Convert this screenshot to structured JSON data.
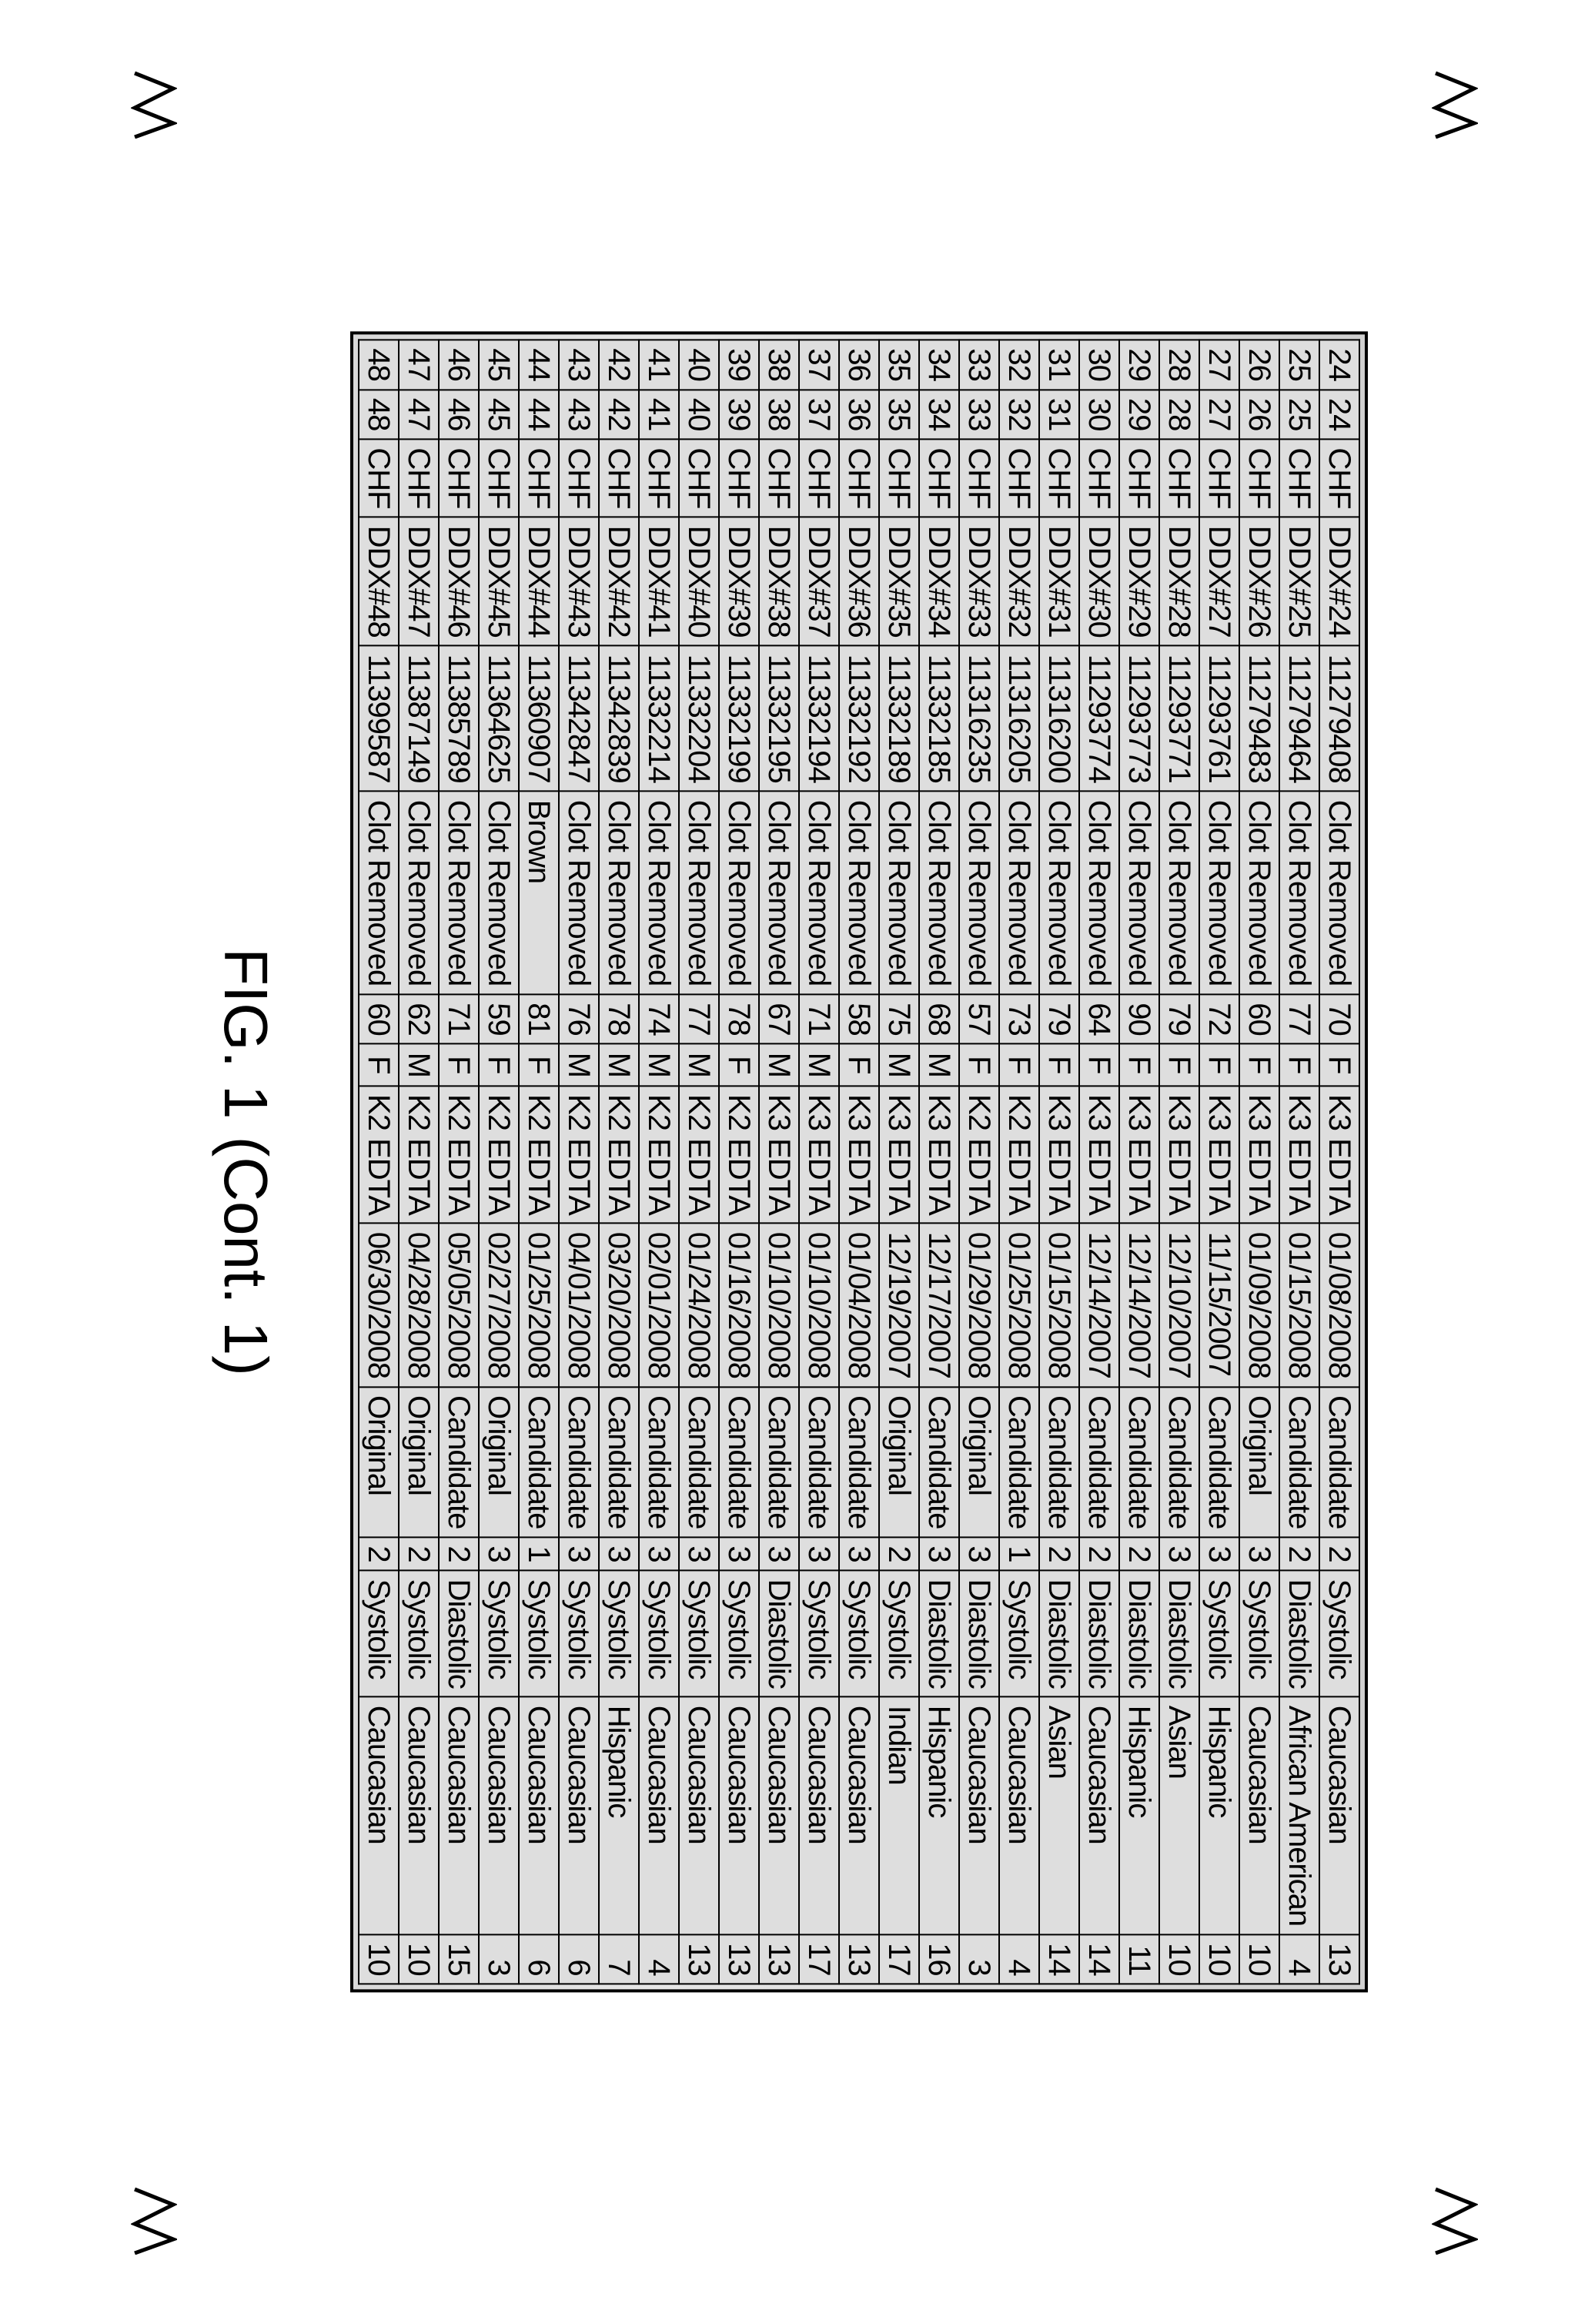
{
  "caption": "FIG. 1 (Cont. 1)",
  "colors": {
    "border": "#000000",
    "tableBg": "#dedede",
    "pageBg": "#ffffff",
    "text": "#000000"
  },
  "rows": [
    {
      "c0": "24",
      "c1": "24",
      "c2": "CHF",
      "c3": "DDX#24",
      "c4": "11279408",
      "c5": "Clot Removed",
      "c6": "70",
      "c7": "F",
      "c8": "K3 EDTA",
      "c9": "01/08/2008",
      "c10": "Candidate",
      "c11": "2",
      "c12": "Systolic",
      "c13": "Caucasian",
      "c14": "13"
    },
    {
      "c0": "25",
      "c1": "25",
      "c2": "CHF",
      "c3": "DDX#25",
      "c4": "11279464",
      "c5": "Clot Removed",
      "c6": "77",
      "c7": "F",
      "c8": "K3 EDTA",
      "c9": "01/15/2008",
      "c10": "Candidate",
      "c11": "2",
      "c12": "Diastolic",
      "c13": "African American",
      "c14": "4"
    },
    {
      "c0": "26",
      "c1": "26",
      "c2": "CHF",
      "c3": "DDX#26",
      "c4": "11279483",
      "c5": "Clot Removed",
      "c6": "60",
      "c7": "F",
      "c8": "K3 EDTA",
      "c9": "01/09/2008",
      "c10": "Original",
      "c11": "3",
      "c12": "Systolic",
      "c13": "Caucasian",
      "c14": "10"
    },
    {
      "c0": "27",
      "c1": "27",
      "c2": "CHF",
      "c3": "DDX#27",
      "c4": "11293761",
      "c5": "Clot Removed",
      "c6": "72",
      "c7": "F",
      "c8": "K3 EDTA",
      "c9": "11/15/2007",
      "c10": "Candidate",
      "c11": "3",
      "c12": "Systolic",
      "c13": "Hispanic",
      "c14": "10"
    },
    {
      "c0": "28",
      "c1": "28",
      "c2": "CHF",
      "c3": "DDX#28",
      "c4": "11293771",
      "c5": "Clot Removed",
      "c6": "79",
      "c7": "F",
      "c8": "K3 EDTA",
      "c9": "12/10/2007",
      "c10": "Candidate",
      "c11": "3",
      "c12": "Diastolic",
      "c13": "Asian",
      "c14": "10"
    },
    {
      "c0": "29",
      "c1": "29",
      "c2": "CHF",
      "c3": "DDX#29",
      "c4": "11293773",
      "c5": "Clot Removed",
      "c6": "90",
      "c7": "F",
      "c8": "K3 EDTA",
      "c9": "12/14/2007",
      "c10": "Candidate",
      "c11": "2",
      "c12": "Diastolic",
      "c13": "Hispanic",
      "c14": "11"
    },
    {
      "c0": "30",
      "c1": "30",
      "c2": "CHF",
      "c3": "DDX#30",
      "c4": "11293774",
      "c5": "Clot Removed",
      "c6": "64",
      "c7": "F",
      "c8": "K3 EDTA",
      "c9": "12/14/2007",
      "c10": "Candidate",
      "c11": "2",
      "c12": "Diastolic",
      "c13": "Caucasian",
      "c14": "14"
    },
    {
      "c0": "31",
      "c1": "31",
      "c2": "CHF",
      "c3": "DDX#31",
      "c4": "11316200",
      "c5": "Clot Removed",
      "c6": "79",
      "c7": "F",
      "c8": "K3 EDTA",
      "c9": "01/15/2008",
      "c10": "Candidate",
      "c11": "2",
      "c12": "Diastolic",
      "c13": "Asian",
      "c14": "14"
    },
    {
      "c0": "32",
      "c1": "32",
      "c2": "CHF",
      "c3": "DDX#32",
      "c4": "11316205",
      "c5": "Clot Removed",
      "c6": "73",
      "c7": "F",
      "c8": "K2 EDTA",
      "c9": "01/25/2008",
      "c10": "Candidate",
      "c11": "1",
      "c12": "Systolic",
      "c13": "Caucasian",
      "c14": "4"
    },
    {
      "c0": "33",
      "c1": "33",
      "c2": "CHF",
      "c3": "DDX#33",
      "c4": "11316235",
      "c5": "Clot Removed",
      "c6": "57",
      "c7": "F",
      "c8": "K2 EDTA",
      "c9": "01/29/2008",
      "c10": "Original",
      "c11": "3",
      "c12": "Diastolic",
      "c13": "Caucasian",
      "c14": "3"
    },
    {
      "c0": "34",
      "c1": "34",
      "c2": "CHF",
      "c3": "DDX#34",
      "c4": "11332185",
      "c5": "Clot Removed",
      "c6": "68",
      "c7": "M",
      "c8": "K3 EDTA",
      "c9": "12/17/2007",
      "c10": "Candidate",
      "c11": "3",
      "c12": "Diastolic",
      "c13": "Hispanic",
      "c14": "16"
    },
    {
      "c0": "35",
      "c1": "35",
      "c2": "CHF",
      "c3": "DDX#35",
      "c4": "11332189",
      "c5": "Clot Removed",
      "c6": "75",
      "c7": "M",
      "c8": "K3 EDTA",
      "c9": "12/19/2007",
      "c10": "Original",
      "c11": "2",
      "c12": "Systolic",
      "c13": "Indian",
      "c14": "17"
    },
    {
      "c0": "36",
      "c1": "36",
      "c2": "CHF",
      "c3": "DDX#36",
      "c4": "11332192",
      "c5": "Clot Removed",
      "c6": "58",
      "c7": "F",
      "c8": "K3 EDTA",
      "c9": "01/04/2008",
      "c10": "Candidate",
      "c11": "3",
      "c12": "Systolic",
      "c13": "Caucasian",
      "c14": "13"
    },
    {
      "c0": "37",
      "c1": "37",
      "c2": "CHF",
      "c3": "DDX#37",
      "c4": "11332194",
      "c5": "Clot Removed",
      "c6": "71",
      "c7": "M",
      "c8": "K3 EDTA",
      "c9": "01/10/2008",
      "c10": "Candidate",
      "c11": "3",
      "c12": "Systolic",
      "c13": "Caucasian",
      "c14": "17"
    },
    {
      "c0": "38",
      "c1": "38",
      "c2": "CHF",
      "c3": "DDX#38",
      "c4": "11332195",
      "c5": "Clot Removed",
      "c6": "67",
      "c7": "M",
      "c8": "K3 EDTA",
      "c9": "01/10/2008",
      "c10": "Candidate",
      "c11": "3",
      "c12": "Diastolic",
      "c13": "Caucasian",
      "c14": "13"
    },
    {
      "c0": "39",
      "c1": "39",
      "c2": "CHF",
      "c3": "DDX#39",
      "c4": "11332199",
      "c5": "Clot Removed",
      "c6": "78",
      "c7": "F",
      "c8": "K2 EDTA",
      "c9": "01/16/2008",
      "c10": "Candidate",
      "c11": "3",
      "c12": "Systolic",
      "c13": "Caucasian",
      "c14": "13"
    },
    {
      "c0": "40",
      "c1": "40",
      "c2": "CHF",
      "c3": "DDX#40",
      "c4": "11332204",
      "c5": "Clot Removed",
      "c6": "77",
      "c7": "M",
      "c8": "K2 EDTA",
      "c9": "01/24/2008",
      "c10": "Candidate",
      "c11": "3",
      "c12": "Systolic",
      "c13": "Caucasian",
      "c14": "13"
    },
    {
      "c0": "41",
      "c1": "41",
      "c2": "CHF",
      "c3": "DDX#41",
      "c4": "11332214",
      "c5": "Clot Removed",
      "c6": "74",
      "c7": "M",
      "c8": "K2 EDTA",
      "c9": "02/01/2008",
      "c10": "Candidate",
      "c11": "3",
      "c12": "Systolic",
      "c13": "Caucasian",
      "c14": "4"
    },
    {
      "c0": "42",
      "c1": "42",
      "c2": "CHF",
      "c3": "DDX#42",
      "c4": "11342839",
      "c5": "Clot Removed",
      "c6": "78",
      "c7": "M",
      "c8": "K2 EDTA",
      "c9": "03/20/2008",
      "c10": "Candidate",
      "c11": "3",
      "c12": "Systolic",
      "c13": "Hispanic",
      "c14": "7"
    },
    {
      "c0": "43",
      "c1": "43",
      "c2": "CHF",
      "c3": "DDX#43",
      "c4": "11342847",
      "c5": "Clot Removed",
      "c6": "76",
      "c7": "M",
      "c8": "K2 EDTA",
      "c9": "04/01/2008",
      "c10": "Candidate",
      "c11": "3",
      "c12": "Systolic",
      "c13": "Caucasian",
      "c14": "6"
    },
    {
      "c0": "44",
      "c1": "44",
      "c2": "CHF",
      "c3": "DDX#44",
      "c4": "11360907",
      "c5": "Brown",
      "c6": "81",
      "c7": "F",
      "c8": "K2 EDTA",
      "c9": "01/25/2008",
      "c10": "Candidate",
      "c11": "1",
      "c12": "Systolic",
      "c13": "Caucasian",
      "c14": "6"
    },
    {
      "c0": "45",
      "c1": "45",
      "c2": "CHF",
      "c3": "DDX#45",
      "c4": "11364625",
      "c5": "Clot Removed",
      "c6": "59",
      "c7": "F",
      "c8": "K2 EDTA",
      "c9": "02/27/2008",
      "c10": "Original",
      "c11": "3",
      "c12": "Systolic",
      "c13": "Caucasian",
      "c14": "3"
    },
    {
      "c0": "46",
      "c1": "46",
      "c2": "CHF",
      "c3": "DDX#46",
      "c4": "11385789",
      "c5": "Clot Removed",
      "c6": "71",
      "c7": "F",
      "c8": "K2 EDTA",
      "c9": "05/05/2008",
      "c10": "Candidate",
      "c11": "2",
      "c12": "Diastolic",
      "c13": "Caucasian",
      "c14": "15"
    },
    {
      "c0": "47",
      "c1": "47",
      "c2": "CHF",
      "c3": "DDX#47",
      "c4": "11387149",
      "c5": "Clot Removed",
      "c6": "62",
      "c7": "M",
      "c8": "K2 EDTA",
      "c9": "04/28/2008",
      "c10": "Original",
      "c11": "2",
      "c12": "Systolic",
      "c13": "Caucasian",
      "c14": "10"
    },
    {
      "c0": "48",
      "c1": "48",
      "c2": "CHF",
      "c3": "DDX#48",
      "c4": "11399587",
      "c5": "Clot Removed",
      "c6": "60",
      "c7": "F",
      "c8": "K2 EDTA",
      "c9": "06/30/2008",
      "c10": "Original",
      "c11": "2",
      "c12": "Systolic",
      "c13": "Caucasian",
      "c14": "10"
    }
  ]
}
